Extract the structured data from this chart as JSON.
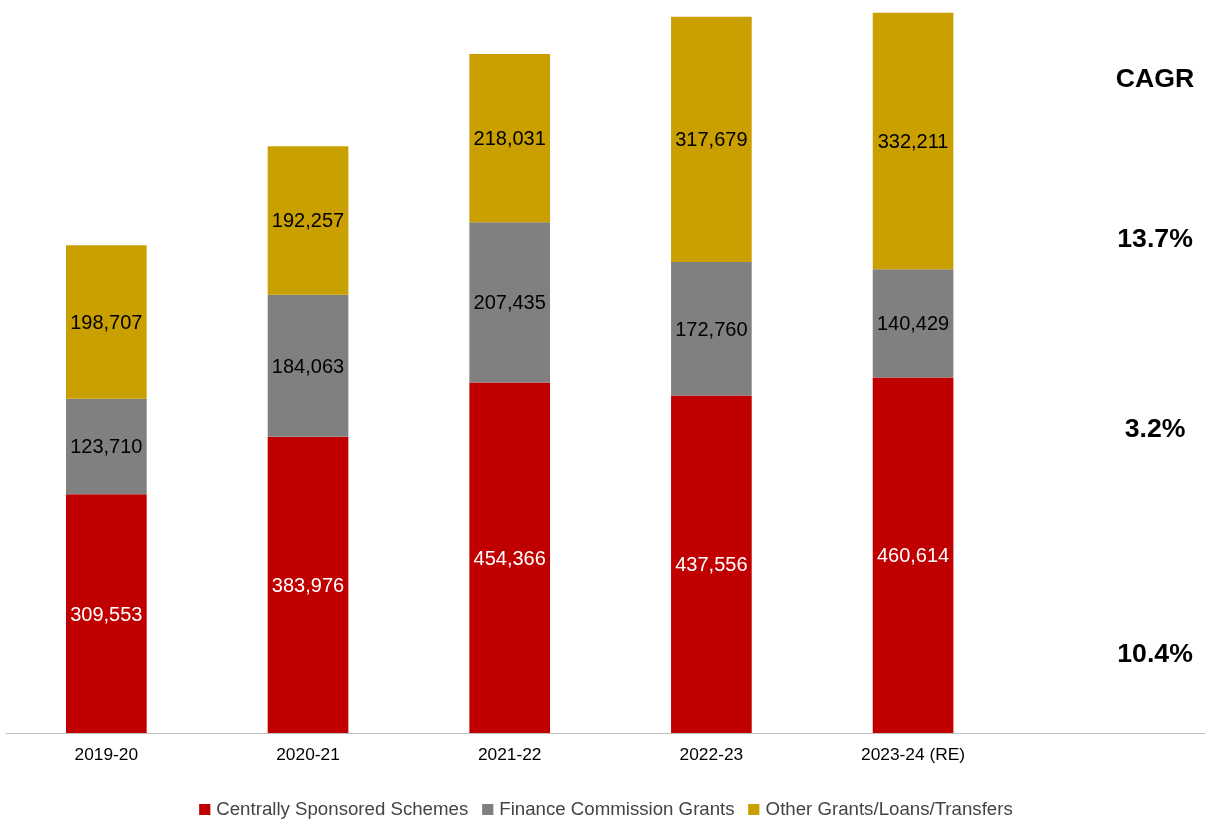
{
  "chart_data": {
    "type": "bar",
    "stacked": true,
    "categories": [
      "2019-20",
      "2020-21",
      "2021-22",
      "2022-23",
      "2023-24 (RE)"
    ],
    "series": [
      {
        "name": "Centrally Sponsored Schemes",
        "color": "#c00000",
        "values": [
          309553,
          383976,
          454366,
          437556,
          460614
        ],
        "value_labels": [
          "309,553",
          "383,976",
          "454,366",
          "437,556",
          "460,614"
        ]
      },
      {
        "name": "Finance Commission Grants",
        "color": "#808080",
        "values": [
          123710,
          184063,
          207435,
          172760,
          140429
        ],
        "value_labels": [
          "123,710",
          "184,063",
          "207,435",
          "172,760",
          "140,429"
        ]
      },
      {
        "name": "Other Grants/Loans/Transfers",
        "color": "#c9a000",
        "values": [
          198707,
          192257,
          218031,
          317679,
          332211
        ],
        "value_labels": [
          "198,707",
          "192,257",
          "218,031",
          "317,679",
          "332,211"
        ]
      }
    ],
    "legend": "bottom",
    "grid": false,
    "annotations": [
      "CAGR",
      "13.7%",
      "3.2%",
      "10.4%"
    ]
  }
}
